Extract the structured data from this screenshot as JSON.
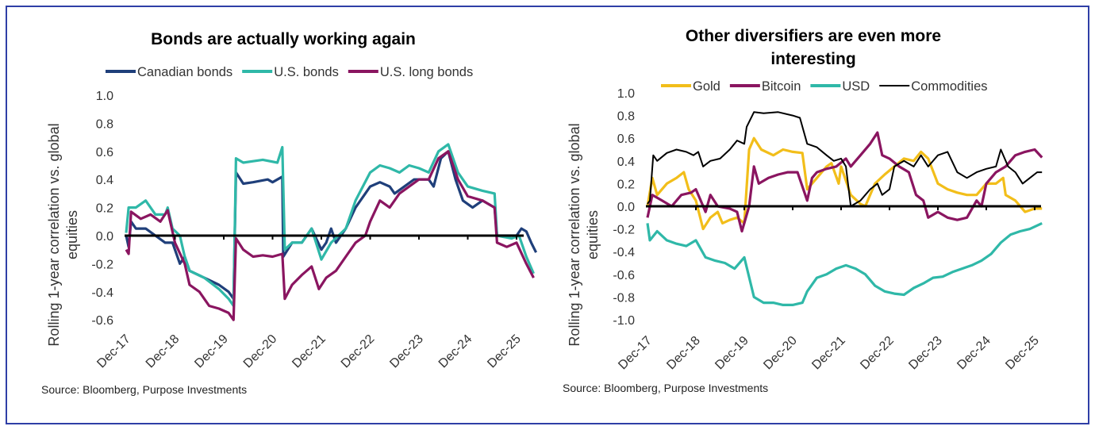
{
  "colors": {
    "border": "#2f3fa6",
    "navy": "#1f3f7a",
    "teal": "#2fb8a8",
    "purple": "#8a1560",
    "gold": "#f2be1a",
    "black": "#000000"
  },
  "chart_data": [
    {
      "type": "line",
      "title": "Bonds are actually working again",
      "xlabel": "",
      "ylabel": "Rolling 1-year correlation vs. global equities",
      "ylabel_lines": [
        "Rolling 1-year correlation vs. global",
        "equities"
      ],
      "x_unit": "years since Dec-17",
      "ylim": [
        -0.6,
        1.0
      ],
      "yticks": [
        "1.0",
        "0.8",
        "0.6",
        "0.4",
        "0.2",
        "0.0",
        "-0.2",
        "-0.4",
        "-0.6"
      ],
      "ytick_values": [
        1.0,
        0.8,
        0.6,
        0.4,
        0.2,
        0.0,
        -0.2,
        -0.4,
        -0.6
      ],
      "xticks": [
        "Dec-17",
        "Dec-18",
        "Dec-19",
        "Dec-20",
        "Dec-21",
        "Dec-22",
        "Dec-23",
        "Dec-24",
        "Dec-25"
      ],
      "legend_position": "top",
      "source": "Source: Bloomberg, Purpose Investments",
      "series": [
        {
          "name": "Canadian bonds",
          "color": "#1f3f7a",
          "x": [
            0,
            0.05,
            0.1,
            0.2,
            0.4,
            0.6,
            0.8,
            0.95,
            1.0,
            1.1,
            1.2,
            1.3,
            1.6,
            1.9,
            2.1,
            2.2,
            2.25,
            2.4,
            2.6,
            2.9,
            3.0,
            3.2,
            3.22,
            3.4,
            3.6,
            3.8,
            4.0,
            4.1,
            4.2,
            4.3,
            4.5,
            4.7,
            4.9,
            5.0,
            5.2,
            5.4,
            5.5,
            5.7,
            5.9,
            6.2,
            6.3,
            6.45,
            6.6,
            6.75,
            6.9,
            7.1,
            7.3,
            7.55,
            7.6,
            7.8,
            8.0,
            8.1,
            8.2,
            8.3,
            8.4
          ],
          "y": [
            0,
            -0.08,
            0.1,
            0.05,
            0.05,
            0.0,
            -0.05,
            -0.05,
            -0.1,
            -0.2,
            -0.15,
            -0.25,
            -0.3,
            -0.35,
            -0.4,
            -0.45,
            0.45,
            0.37,
            0.38,
            0.4,
            0.38,
            0.42,
            -0.15,
            -0.05,
            -0.05,
            0.05,
            -0.1,
            -0.05,
            0.05,
            -0.05,
            0.05,
            0.2,
            0.3,
            0.35,
            0.38,
            0.35,
            0.3,
            0.35,
            0.4,
            0.4,
            0.35,
            0.55,
            0.6,
            0.4,
            0.25,
            0.2,
            0.25,
            0.2,
            0.0,
            0.0,
            0.0,
            0.05,
            0.03,
            -0.05,
            -0.12
          ]
        },
        {
          "name": "U.S. bonds",
          "color": "#2fb8a8",
          "x": [
            0,
            0.05,
            0.2,
            0.4,
            0.6,
            0.8,
            0.85,
            0.95,
            1.1,
            1.2,
            1.3,
            1.6,
            1.9,
            2.1,
            2.2,
            2.25,
            2.4,
            2.6,
            2.8,
            3.1,
            3.2,
            3.25,
            3.4,
            3.6,
            3.8,
            4.0,
            4.2,
            4.5,
            4.7,
            5.0,
            5.2,
            5.4,
            5.6,
            5.8,
            6.0,
            6.2,
            6.4,
            6.6,
            6.8,
            7.0,
            7.3,
            7.55,
            7.6,
            7.9,
            8.05,
            8.2,
            8.35
          ],
          "y": [
            0.02,
            0.2,
            0.2,
            0.25,
            0.15,
            0.15,
            0.2,
            0.05,
            0.0,
            -0.15,
            -0.25,
            -0.3,
            -0.38,
            -0.45,
            -0.5,
            0.55,
            0.52,
            0.53,
            0.54,
            0.52,
            0.63,
            -0.1,
            -0.05,
            -0.05,
            0.05,
            -0.17,
            -0.05,
            0.05,
            0.25,
            0.45,
            0.5,
            0.48,
            0.45,
            0.5,
            0.48,
            0.45,
            0.6,
            0.65,
            0.45,
            0.35,
            0.32,
            0.3,
            0.0,
            -0.02,
            0.0,
            -0.15,
            -0.27
          ]
        },
        {
          "name": "U.S. long bonds",
          "color": "#8a1560",
          "x": [
            0,
            0.05,
            0.1,
            0.3,
            0.5,
            0.7,
            0.85,
            1.0,
            1.2,
            1.3,
            1.5,
            1.7,
            1.9,
            2.1,
            2.2,
            2.25,
            2.4,
            2.6,
            2.8,
            3.0,
            3.2,
            3.25,
            3.4,
            3.6,
            3.8,
            3.95,
            4.1,
            4.3,
            4.5,
            4.7,
            4.9,
            5.0,
            5.2,
            5.4,
            5.6,
            5.8,
            6.0,
            6.2,
            6.4,
            6.6,
            6.8,
            7.0,
            7.3,
            7.55,
            7.6,
            7.8,
            8.0,
            8.2,
            8.35
          ],
          "y": [
            -0.1,
            -0.13,
            0.17,
            0.12,
            0.15,
            0.1,
            0.18,
            -0.05,
            -0.2,
            -0.35,
            -0.4,
            -0.5,
            -0.52,
            -0.55,
            -0.6,
            -0.02,
            -0.1,
            -0.15,
            -0.14,
            -0.15,
            -0.13,
            -0.45,
            -0.35,
            -0.28,
            -0.22,
            -0.38,
            -0.3,
            -0.25,
            -0.15,
            -0.05,
            0.0,
            0.1,
            0.25,
            0.2,
            0.3,
            0.35,
            0.4,
            0.4,
            0.55,
            0.6,
            0.4,
            0.28,
            0.25,
            0.2,
            -0.05,
            -0.08,
            -0.05,
            -0.2,
            -0.3
          ]
        }
      ]
    },
    {
      "type": "line",
      "title": "Other diversifiers are even more interesting",
      "title_lines": [
        "Other diversifiers are even more",
        "interesting"
      ],
      "xlabel": "",
      "ylabel": "Rolling 1-year correlation vs. global equities",
      "ylabel_lines": [
        "Rolling 1-year correlation vs. global",
        "equities"
      ],
      "x_unit": "years since Dec-17",
      "ylim": [
        -1.0,
        1.0
      ],
      "yticks": [
        "1.0",
        "0.8",
        "0.6",
        "0.4",
        "0.2",
        "0.0",
        "-0.2",
        "-0.4",
        "-0.6",
        "-0.8",
        "-1.0"
      ],
      "ytick_values": [
        1.0,
        0.8,
        0.6,
        0.4,
        0.2,
        0.0,
        -0.2,
        -0.4,
        -0.6,
        -0.8,
        -1.0
      ],
      "xticks": [
        "Dec-17",
        "Dec-18",
        "Dec-19",
        "Dec-20",
        "Dec-21",
        "Dec-22",
        "Dec-23",
        "Dec-24",
        "Dec-25"
      ],
      "legend_position": "top",
      "source": "Source: Bloomberg, Purpose Investments",
      "series": [
        {
          "name": "Gold",
          "color": "#f2be1a",
          "x": [
            0,
            0.1,
            0.2,
            0.4,
            0.6,
            0.75,
            0.85,
            1.0,
            1.15,
            1.3,
            1.45,
            1.55,
            1.7,
            1.85,
            2.0,
            2.1,
            2.2,
            2.35,
            2.6,
            2.8,
            3.0,
            3.2,
            3.3,
            3.5,
            3.7,
            3.8,
            3.95,
            4.0,
            4.2,
            4.4,
            4.5,
            4.7,
            4.9,
            5.1,
            5.3,
            5.5,
            5.65,
            5.8,
            6.0,
            6.2,
            6.4,
            6.6,
            6.8,
            7.0,
            7.2,
            7.35,
            7.4,
            7.6,
            7.8,
            8.0,
            8.15
          ],
          "y": [
            0,
            0.25,
            0.1,
            0.2,
            0.25,
            0.3,
            0.15,
            0.05,
            -0.2,
            -0.1,
            -0.05,
            -0.15,
            -0.12,
            -0.1,
            -0.15,
            0.5,
            0.6,
            0.5,
            0.45,
            0.5,
            0.48,
            0.47,
            0.15,
            0.25,
            0.35,
            0.38,
            0.2,
            0.35,
            0.1,
            0.02,
            0.0,
            0.2,
            0.28,
            0.35,
            0.42,
            0.4,
            0.48,
            0.42,
            0.2,
            0.15,
            0.12,
            0.1,
            0.1,
            0.2,
            0.2,
            0.25,
            0.1,
            0.05,
            -0.05,
            -0.02,
            -0.02
          ]
        },
        {
          "name": "Bitcoin",
          "color": "#8a1560",
          "x": [
            0,
            0.1,
            0.3,
            0.5,
            0.7,
            0.9,
            1.0,
            1.1,
            1.2,
            1.3,
            1.45,
            1.7,
            1.85,
            1.95,
            2.1,
            2.2,
            2.3,
            2.5,
            2.7,
            2.9,
            3.1,
            3.3,
            3.4,
            3.5,
            3.7,
            3.9,
            4.1,
            4.2,
            4.4,
            4.6,
            4.75,
            4.85,
            5.0,
            5.2,
            5.4,
            5.55,
            5.7,
            5.8,
            6.0,
            6.2,
            6.4,
            6.6,
            6.8,
            6.9,
            7.0,
            7.2,
            7.4,
            7.6,
            7.8,
            8.0,
            8.15
          ],
          "y": [
            -0.1,
            0.1,
            0.05,
            0.0,
            0.1,
            0.12,
            0.15,
            0.05,
            -0.05,
            0.1,
            0.0,
            -0.02,
            -0.05,
            -0.22,
            0.0,
            0.35,
            0.2,
            0.25,
            0.28,
            0.3,
            0.3,
            0.05,
            0.25,
            0.3,
            0.33,
            0.35,
            0.42,
            0.35,
            0.45,
            0.55,
            0.65,
            0.45,
            0.42,
            0.35,
            0.3,
            0.1,
            0.05,
            -0.1,
            -0.05,
            -0.1,
            -0.12,
            -0.1,
            0.05,
            0.0,
            0.2,
            0.3,
            0.35,
            0.45,
            0.48,
            0.5,
            0.43
          ]
        },
        {
          "name": "USD",
          "color": "#2fb8a8",
          "x": [
            0,
            0.05,
            0.2,
            0.4,
            0.6,
            0.8,
            1.0,
            1.2,
            1.4,
            1.6,
            1.8,
            2.0,
            2.2,
            2.4,
            2.6,
            2.8,
            3.0,
            3.2,
            3.3,
            3.5,
            3.7,
            3.9,
            4.1,
            4.3,
            4.5,
            4.7,
            4.9,
            5.1,
            5.3,
            5.5,
            5.7,
            5.9,
            6.1,
            6.3,
            6.5,
            6.7,
            6.9,
            7.1,
            7.3,
            7.5,
            7.7,
            7.9,
            8.15
          ],
          "y": [
            -0.15,
            -0.3,
            -0.22,
            -0.3,
            -0.33,
            -0.35,
            -0.3,
            -0.45,
            -0.48,
            -0.5,
            -0.55,
            -0.45,
            -0.8,
            -0.85,
            -0.85,
            -0.87,
            -0.87,
            -0.85,
            -0.75,
            -0.63,
            -0.6,
            -0.55,
            -0.52,
            -0.55,
            -0.6,
            -0.7,
            -0.75,
            -0.77,
            -0.78,
            -0.72,
            -0.68,
            -0.63,
            -0.62,
            -0.58,
            -0.55,
            -0.52,
            -0.48,
            -0.42,
            -0.32,
            -0.25,
            -0.22,
            -0.2,
            -0.15
          ]
        },
        {
          "name": "Commodities",
          "color": "#000000",
          "x": [
            0,
            0.05,
            0.12,
            0.2,
            0.4,
            0.6,
            0.8,
            0.95,
            1.05,
            1.15,
            1.3,
            1.5,
            1.7,
            1.85,
            2.0,
            2.05,
            2.2,
            2.4,
            2.7,
            3.0,
            3.15,
            3.3,
            3.5,
            3.7,
            3.85,
            4.0,
            4.1,
            4.2,
            4.4,
            4.6,
            4.75,
            4.85,
            5.0,
            5.1,
            5.3,
            5.5,
            5.65,
            5.8,
            6.0,
            6.2,
            6.4,
            6.6,
            6.8,
            7.0,
            7.2,
            7.3,
            7.45,
            7.6,
            7.75,
            7.9,
            8.05,
            8.15
          ],
          "y": [
            0.02,
            0.05,
            0.45,
            0.4,
            0.47,
            0.5,
            0.48,
            0.45,
            0.48,
            0.35,
            0.4,
            0.42,
            0.5,
            0.58,
            0.55,
            0.7,
            0.83,
            0.82,
            0.83,
            0.8,
            0.78,
            0.55,
            0.52,
            0.45,
            0.4,
            0.42,
            0.35,
            0.0,
            0.05,
            0.15,
            0.2,
            0.1,
            0.15,
            0.35,
            0.4,
            0.35,
            0.45,
            0.35,
            0.45,
            0.48,
            0.3,
            0.25,
            0.3,
            0.33,
            0.35,
            0.5,
            0.35,
            0.3,
            0.2,
            0.25,
            0.3,
            0.3
          ]
        }
      ]
    }
  ]
}
